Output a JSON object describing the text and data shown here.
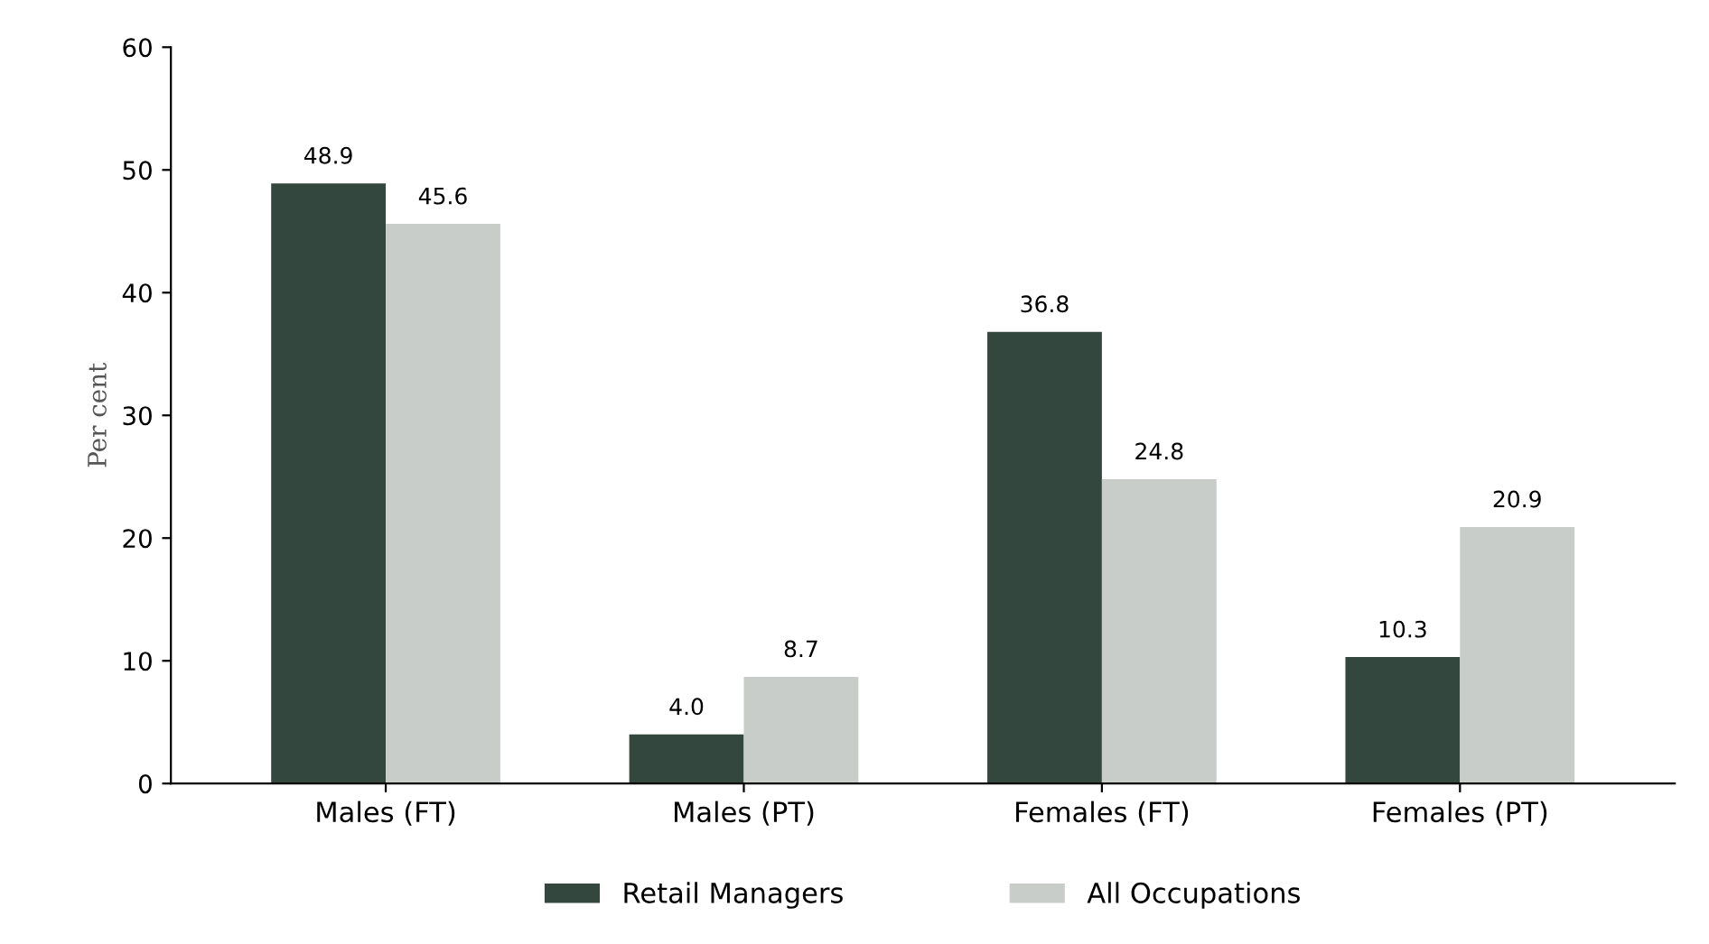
{
  "chart_data": {
    "type": "bar",
    "ylabel": "Per cent",
    "categories": [
      "Males (FT)",
      "Males (PT)",
      "Females (FT)",
      "Females (PT)"
    ],
    "series": [
      {
        "name": "Retail Managers",
        "color": "#34473f",
        "values": [
          48.9,
          4.0,
          36.8,
          10.3
        ],
        "value_labels": [
          "48.9",
          "4.0",
          "36.8",
          "10.3"
        ]
      },
      {
        "name": "All Occupations",
        "color": "#c9cdca",
        "values": [
          45.6,
          8.7,
          24.8,
          20.9
        ],
        "value_labels": [
          "45.6",
          "8.7",
          "24.8",
          "20.9"
        ]
      }
    ],
    "ylim": [
      0,
      60
    ],
    "yticks": [
      0,
      10,
      20,
      30,
      40,
      50,
      60
    ],
    "grid": false,
    "legend": "bottom"
  }
}
